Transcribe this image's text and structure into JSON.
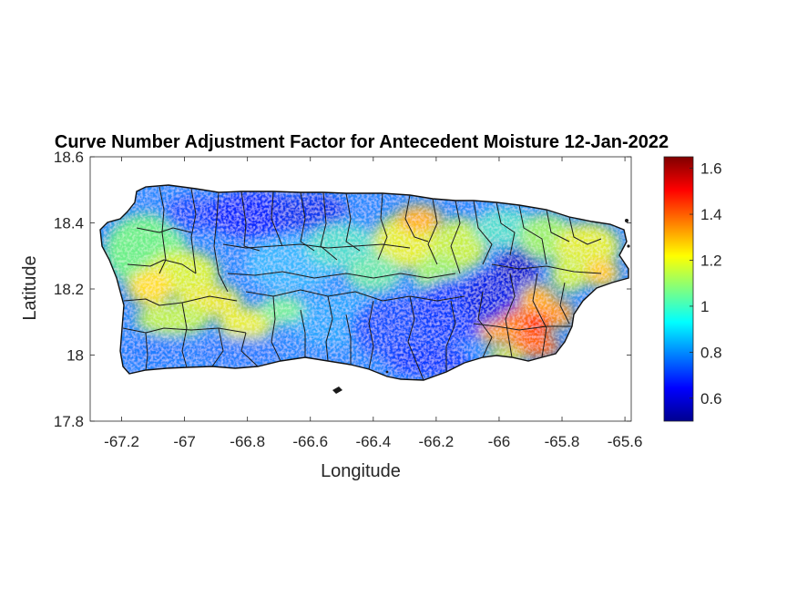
{
  "title": "Curve Number Adjustment Factor for Antecedent Moisture 12-Jan-2022",
  "xlabel": "Longitude",
  "ylabel": "Latitude",
  "x_ticks": [
    "-67.2",
    "-67",
    "-66.8",
    "-66.6",
    "-66.4",
    "-66.2",
    "-66",
    "-65.8",
    "-65.6"
  ],
  "y_ticks": [
    "18.6",
    "18.4",
    "18.2",
    "18",
    "17.8"
  ],
  "colorbar_ticks": [
    "1.6",
    "1.4",
    "1.2",
    "1",
    "0.8",
    "0.6"
  ],
  "chart_data": {
    "type": "heatmap",
    "title": "Curve Number Adjustment Factor for Antecedent Moisture 12-Jan-2022",
    "xlabel": "Longitude",
    "ylabel": "Latitude",
    "xlim": [
      -67.3,
      -65.58
    ],
    "ylim": [
      17.8,
      18.6
    ],
    "x_tick_values": [
      -67.2,
      -67,
      -66.8,
      -66.6,
      -66.4,
      -66.2,
      -66,
      -65.8,
      -65.6
    ],
    "y_tick_values": [
      18.6,
      18.4,
      18.2,
      18,
      17.8
    ],
    "colorbar": {
      "colormap": "jet",
      "range": [
        0.5,
        1.65
      ],
      "ticks": [
        1.6,
        1.4,
        1.2,
        1,
        0.8,
        0.6
      ],
      "placement": "right"
    },
    "grid": false,
    "regions": [
      {
        "area": "west",
        "approx_value": 1.05
      },
      {
        "area": "north-central",
        "approx_value": 0.7
      },
      {
        "area": "central",
        "approx_value": 0.9
      },
      {
        "area": "south-central",
        "approx_value": 0.85
      },
      {
        "area": "north-east",
        "approx_value": 1.15
      },
      {
        "area": "east-central",
        "approx_value": 0.65
      },
      {
        "area": "south-east",
        "approx_value": 1.5
      }
    ]
  }
}
